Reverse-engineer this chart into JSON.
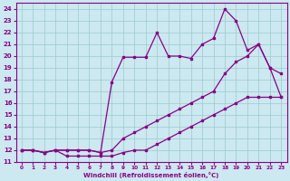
{
  "xlabel": "Windchill (Refroidissement éolien,°C)",
  "xlim": [
    -0.5,
    23.5
  ],
  "ylim": [
    11,
    24.5
  ],
  "xticks": [
    0,
    1,
    2,
    3,
    4,
    5,
    6,
    7,
    8,
    9,
    10,
    11,
    12,
    13,
    14,
    15,
    16,
    17,
    18,
    19,
    20,
    21,
    22,
    23
  ],
  "yticks": [
    11,
    12,
    13,
    14,
    15,
    16,
    17,
    18,
    19,
    20,
    21,
    22,
    23,
    24
  ],
  "bg_color": "#cce8f0",
  "line_color": "#880088",
  "grid_color": "#99cccc",
  "line1_x": [
    0,
    1,
    2,
    3,
    4,
    5,
    6,
    7,
    8,
    9,
    10,
    11,
    12,
    13,
    14,
    15,
    16,
    17,
    18,
    19,
    20,
    21,
    22,
    23
  ],
  "line1_y": [
    12,
    12,
    11.8,
    12,
    11.5,
    11.5,
    11.5,
    11.5,
    11.5,
    11.8,
    12,
    12,
    12.5,
    13,
    13.5,
    14,
    14.5,
    15,
    15.5,
    16,
    16.5,
    16.5,
    16.5,
    16.5
  ],
  "line2_x": [
    0,
    1,
    2,
    3,
    4,
    5,
    6,
    7,
    8,
    9,
    10,
    11,
    12,
    13,
    14,
    15,
    16,
    17,
    18,
    19,
    20,
    21,
    22,
    23
  ],
  "line2_y": [
    12,
    12,
    11.8,
    12,
    12,
    12,
    12,
    11.8,
    17.8,
    19.9,
    19.9,
    19.9,
    22,
    20,
    20,
    19.8,
    21,
    21.5,
    24,
    23,
    20.5,
    21,
    19,
    16.5
  ],
  "line3_x": [
    0,
    1,
    2,
    3,
    4,
    5,
    6,
    7,
    8,
    9,
    10,
    11,
    12,
    13,
    14,
    15,
    16,
    17,
    18,
    19,
    20,
    21,
    22,
    23
  ],
  "line3_y": [
    12,
    12,
    11.8,
    12,
    12,
    12,
    12,
    11.8,
    12,
    13,
    13.5,
    14,
    14.5,
    15,
    15.5,
    16,
    16.5,
    17,
    18.5,
    19.5,
    20,
    21,
    19,
    18.5
  ]
}
